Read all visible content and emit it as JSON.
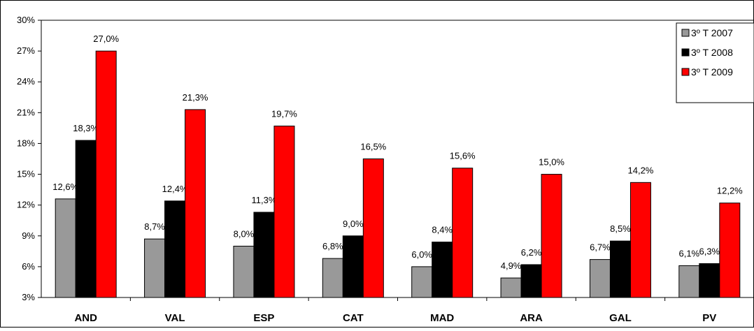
{
  "chart_data": {
    "type": "bar",
    "title": "",
    "xlabel": "",
    "ylabel": "",
    "ylim": [
      3,
      30
    ],
    "y_ticks": [
      3,
      6,
      9,
      12,
      15,
      18,
      21,
      24,
      27,
      30
    ],
    "y_tick_labels": [
      "3%",
      "6%",
      "9%",
      "12%",
      "15%",
      "18%",
      "21%",
      "24%",
      "27%",
      "30%"
    ],
    "grid": false,
    "legend_position": "top-right",
    "categories": [
      "AND",
      "VAL",
      "ESP",
      "CAT",
      "MAD",
      "ARA",
      "GAL",
      "PV"
    ],
    "series": [
      {
        "name": "3º T 2007",
        "color": "#999999",
        "values": [
          12.6,
          8.7,
          8.0,
          6.8,
          6.0,
          4.9,
          6.7,
          6.1
        ],
        "labels": [
          "12,6%",
          "8,7%",
          "8,0%",
          "6,8%",
          "6,0%",
          "4,9%",
          "6,7%",
          "6,1%"
        ]
      },
      {
        "name": "3º T 2008",
        "color": "#000000",
        "values": [
          18.3,
          12.4,
          11.3,
          9.0,
          8.4,
          6.2,
          8.5,
          6.3
        ],
        "labels": [
          "18,3%",
          "12,4%",
          "11,3%",
          "9,0%",
          "8,4%",
          "6,2%",
          "8,5%",
          "6,3%"
        ]
      },
      {
        "name": "3º T 2009",
        "color": "#ff0000",
        "values": [
          27.0,
          21.3,
          19.7,
          16.5,
          15.6,
          15.0,
          14.2,
          12.2
        ],
        "labels": [
          "27,0%",
          "21,3%",
          "19,7%",
          "16,5%",
          "15,6%",
          "15,0%",
          "14,2%",
          "12,2%"
        ]
      }
    ]
  }
}
